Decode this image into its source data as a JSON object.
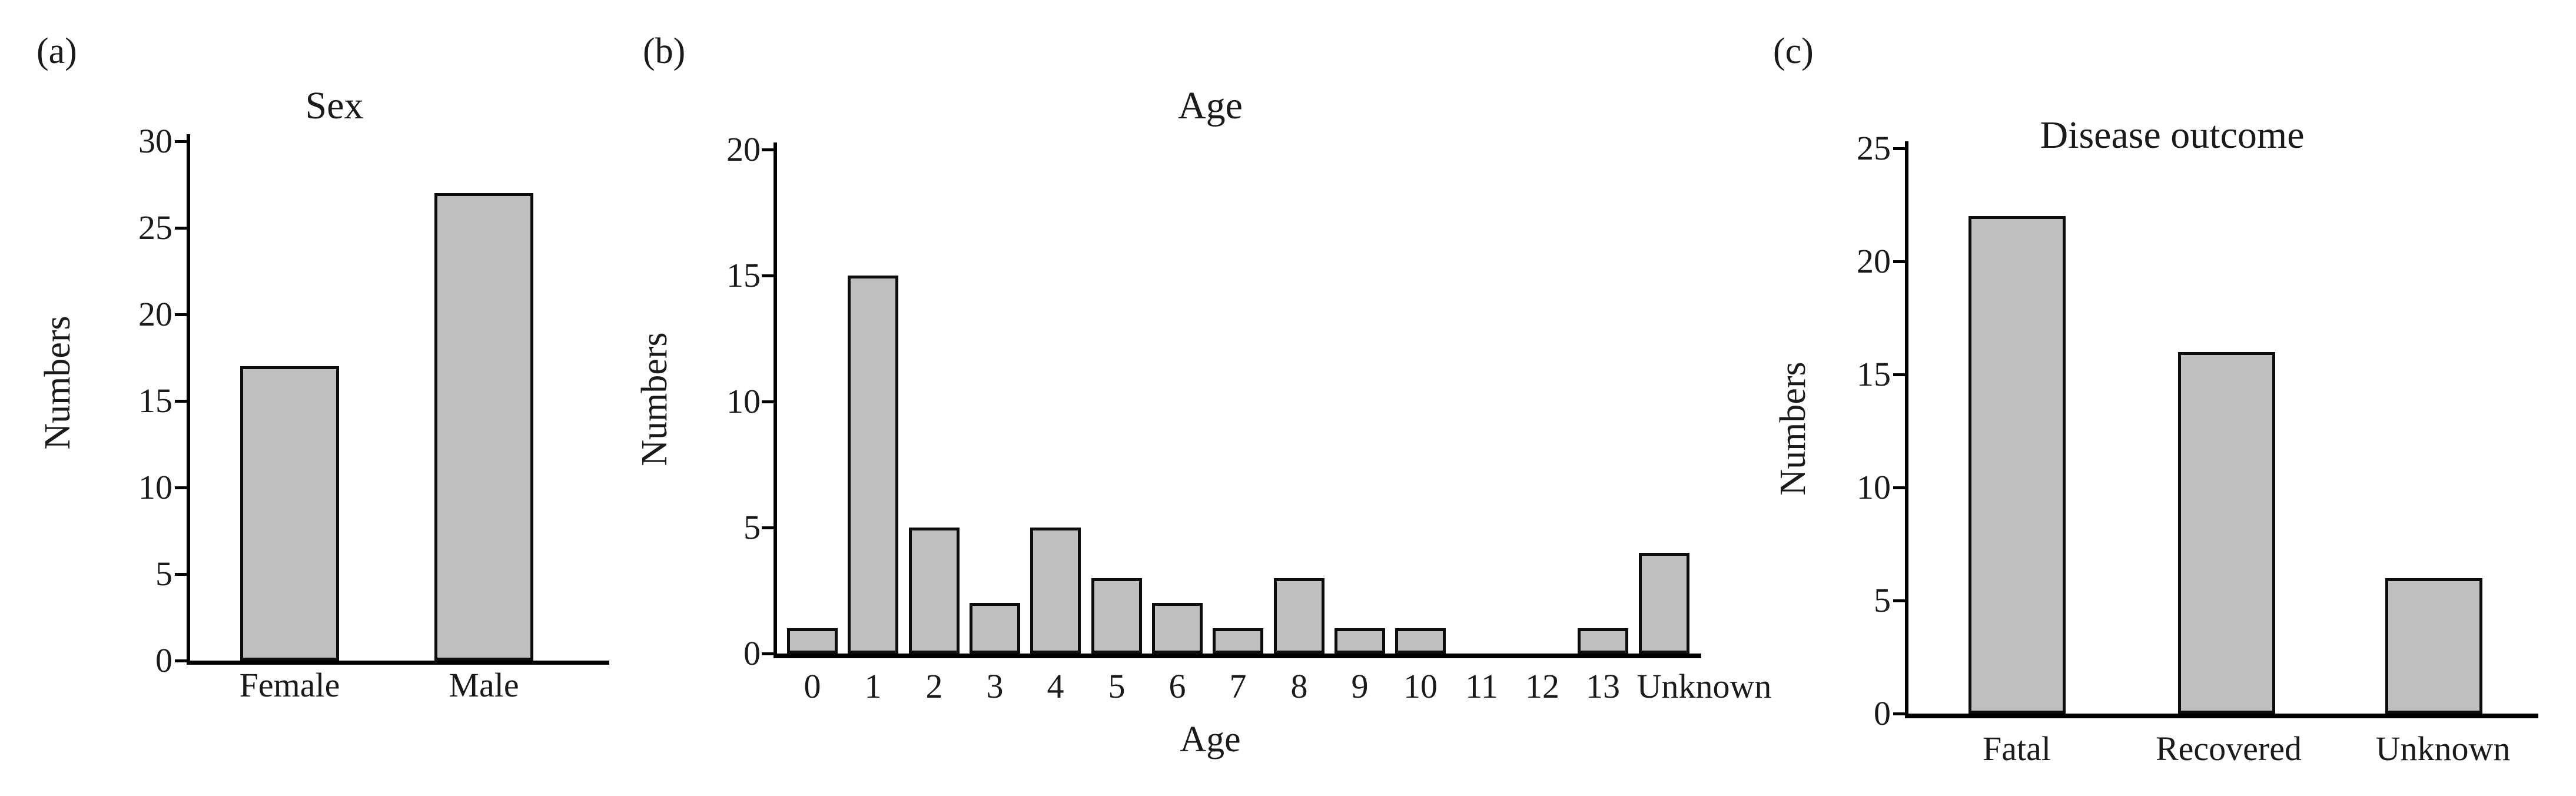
{
  "colors": {
    "bar_fill": "#bfbfbf",
    "bar_border": "#0d0d0d",
    "axis": "#000000",
    "text": "#1a1a1a",
    "background": "#ffffff"
  },
  "chart_data": [
    {
      "type": "bar",
      "panel_label": "(a)",
      "title": "Sex",
      "ylabel": "Numbers",
      "xlabel": "",
      "categories": [
        "Female",
        "Male"
      ],
      "values": [
        17,
        27
      ],
      "ylim": [
        0,
        30
      ],
      "ytick_step": 5,
      "yticks": [
        0,
        5,
        10,
        15,
        20,
        25,
        30
      ],
      "grid": false,
      "legend": false
    },
    {
      "type": "bar",
      "panel_label": "(b)",
      "title": "Age",
      "ylabel": "Numbers",
      "xlabel": "Age",
      "categories": [
        "0",
        "1",
        "2",
        "3",
        "4",
        "5",
        "6",
        "7",
        "8",
        "9",
        "10",
        "11",
        "12",
        "13",
        "Unknown"
      ],
      "values": [
        1,
        15,
        5,
        2,
        5,
        3,
        2,
        1,
        3,
        1,
        1,
        0,
        0,
        1,
        4
      ],
      "ylim": [
        0,
        20
      ],
      "ytick_step": 5,
      "yticks": [
        0,
        5,
        10,
        15,
        20
      ],
      "grid": false,
      "legend": false
    },
    {
      "type": "bar",
      "panel_label": "(c)",
      "title": "Disease outcome",
      "ylabel": "Numbers",
      "xlabel": "",
      "categories": [
        "Fatal",
        "Recovered",
        "Unknown"
      ],
      "values": [
        22,
        16,
        6
      ],
      "ylim": [
        0,
        25
      ],
      "ytick_step": 5,
      "yticks": [
        0,
        5,
        10,
        15,
        20,
        25
      ],
      "grid": false,
      "legend": false
    }
  ]
}
